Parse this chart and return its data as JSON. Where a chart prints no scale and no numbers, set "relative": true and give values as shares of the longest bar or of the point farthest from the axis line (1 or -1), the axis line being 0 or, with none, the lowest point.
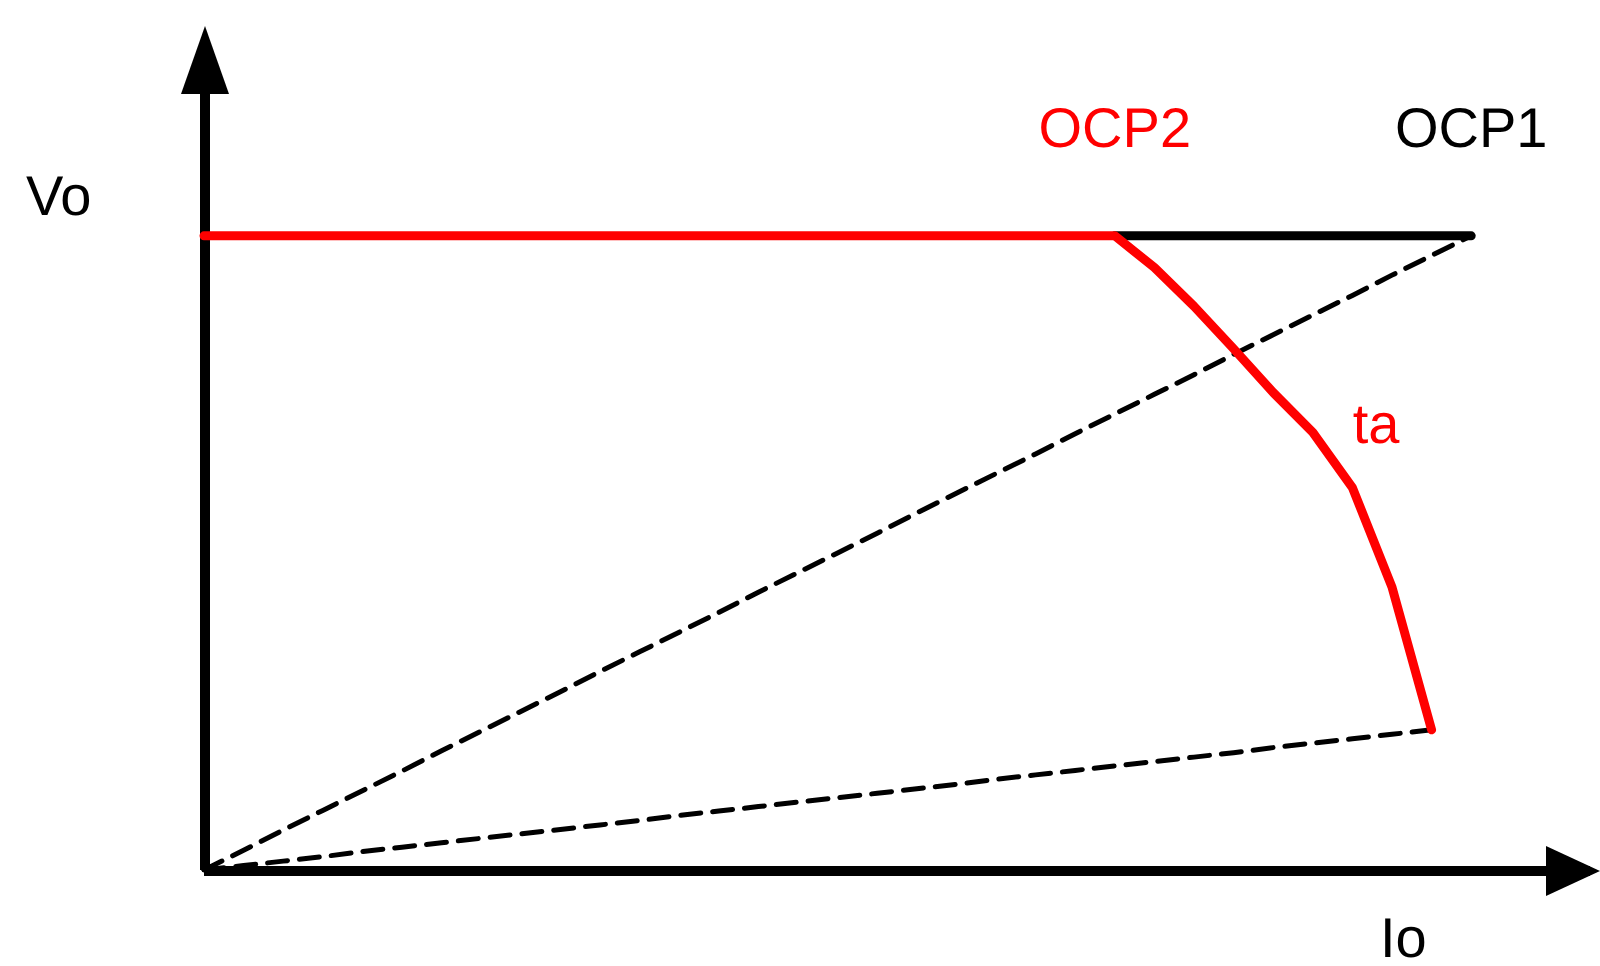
{
  "chart_data": {
    "type": "line",
    "xlabel": "Io",
    "ylabel": "Vo",
    "relative": true,
    "legend": false,
    "grid": false,
    "marker": "none",
    "annotations": [
      "ta"
    ],
    "categories": [
      null,
      null,
      null,
      null,
      null,
      null,
      null,
      null,
      null,
      null,
      null,
      null,
      null,
      null,
      null,
      null,
      null,
      null,
      null,
      null,
      null,
      null,
      null,
      null,
      null,
      null,
      null,
      null,
      null,
      null,
      null,
      null,
      null,
      null,
      null,
      null
    ],
    "series": [
      {
        "color": "#000000",
        "line_style": "dashed",
        "values": [
          0,
          0.031,
          0.063,
          0.094,
          0.125,
          0.156,
          0.188,
          0.219,
          0.25,
          0.281,
          0.313,
          0.344,
          0.375,
          0.406,
          0.438,
          0.469,
          0.5,
          0.531,
          0.563,
          0.594,
          0.625,
          0.656,
          0.688,
          0.719,
          0.75,
          0.781,
          0.813,
          0.844,
          0.875,
          0.906,
          0.938,
          0.969,
          1,
          null,
          null,
          null
        ]
      },
      {
        "color": "#000000",
        "line_style": "dashed",
        "values": [
          0,
          0.007,
          0.014,
          0.021,
          0.029,
          0.036,
          0.043,
          0.05,
          0.057,
          0.064,
          0.071,
          0.078,
          0.086,
          0.093,
          0.1,
          0.107,
          0.114,
          0.121,
          0.128,
          0.135,
          0.143,
          0.15,
          0.157,
          0.164,
          0.171,
          0.178,
          0.185,
          0.193,
          0.2,
          0.207,
          0.214,
          0.221,
          null,
          null,
          null,
          null
        ]
      },
      {
        "name": "OCP1",
        "color": "#000000",
        "line_style": "solid",
        "values": [
          null,
          null,
          null,
          null,
          null,
          null,
          null,
          null,
          null,
          null,
          null,
          null,
          null,
          null,
          null,
          null,
          null,
          null,
          null,
          null,
          null,
          null,
          null,
          1,
          1,
          1,
          1,
          1,
          1,
          1,
          1,
          1,
          1,
          null,
          null,
          null
        ]
      },
      {
        "name": "OCP2",
        "color": "#ff0000",
        "line_style": "solid",
        "values": [
          1,
          1,
          1,
          1,
          1,
          1,
          1,
          1,
          1,
          1,
          1,
          1,
          1,
          1,
          1,
          1,
          1,
          1,
          1,
          1,
          1,
          1,
          1,
          1,
          0.95,
          0.889,
          0.822,
          0.753,
          0.69,
          0.603,
          0.446,
          0.221,
          null,
          null,
          null,
          null
        ]
      }
    ]
  }
}
